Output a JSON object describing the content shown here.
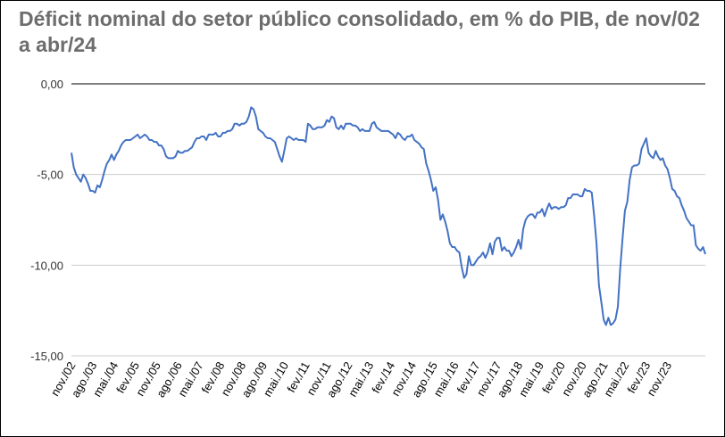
{
  "chart_data": {
    "type": "line",
    "title": "Déficit nominal do setor público consolidado, em % do PIB, de nov/02 a abr/24",
    "xlabel": "",
    "ylabel": "",
    "ylim": [
      -15,
      0
    ],
    "y_ticks": [
      "0,00",
      "-5,00",
      "-10,00",
      "-15,00"
    ],
    "x_tick_labels": [
      "nov./02",
      "ago./03",
      "mai./04",
      "fev./05",
      "nov./05",
      "ago./06",
      "mai./07",
      "fev./08",
      "nov./08",
      "ago./09",
      "mai./10",
      "fev./11",
      "nov./11",
      "ago./12",
      "mai./13",
      "fev./14",
      "nov./14",
      "ago./15",
      "mai./16",
      "fev./17",
      "nov./17",
      "ago./18",
      "mai./19",
      "fev./20",
      "nov./20",
      "ago./21",
      "mai./22",
      "fev./23",
      "nov./23"
    ],
    "grid": true,
    "legend": "none",
    "line_color": "#4472c4",
    "x_start": "2002-11",
    "x_end": "2024-04",
    "series": [
      {
        "values": [
          -3.8,
          -4.6,
          -5.0,
          -5.2,
          -5.4,
          -5.0,
          -5.2,
          -5.5,
          -5.9,
          -5.9,
          -6.0,
          -5.6,
          -5.7,
          -5.3,
          -4.8,
          -4.4,
          -4.2,
          -3.9,
          -4.2,
          -3.9,
          -3.7,
          -3.4,
          -3.2,
          -3.1,
          -3.1,
          -3.1,
          -3.0,
          -2.9,
          -2.8,
          -3.0,
          -2.9,
          -2.8,
          -2.9,
          -3.1,
          -3.1,
          -3.2,
          -3.2,
          -3.4,
          -3.4,
          -3.6,
          -4.0,
          -4.1,
          -4.1,
          -4.1,
          -4.0,
          -3.7,
          -3.8,
          -3.8,
          -3.7,
          -3.7,
          -3.6,
          -3.5,
          -3.2,
          -3.0,
          -3.0,
          -2.9,
          -2.9,
          -3.1,
          -2.8,
          -2.8,
          -2.8,
          -2.7,
          -2.9,
          -2.9,
          -2.7,
          -2.7,
          -2.6,
          -2.6,
          -2.5,
          -2.2,
          -2.2,
          -2.3,
          -2.2,
          -2.2,
          -2.1,
          -1.8,
          -1.3,
          -1.4,
          -1.8,
          -2.5,
          -2.6,
          -2.7,
          -2.9,
          -3.0,
          -3.0,
          -3.1,
          -3.2,
          -3.6,
          -4.0,
          -4.3,
          -3.7,
          -3.0,
          -2.9,
          -3.0,
          -3.1,
          -3.0,
          -3.1,
          -3.1,
          -3.1,
          -3.2,
          -2.2,
          -2.3,
          -2.5,
          -2.5,
          -2.4,
          -2.4,
          -2.4,
          -2.3,
          -2.0,
          -2.1,
          -1.8,
          -1.9,
          -2.4,
          -2.5,
          -2.3,
          -2.5,
          -2.2,
          -2.2,
          -2.2,
          -2.3,
          -2.3,
          -2.4,
          -2.6,
          -2.5,
          -2.6,
          -2.6,
          -2.6,
          -2.2,
          -2.1,
          -2.4,
          -2.5,
          -2.6,
          -2.6,
          -2.6,
          -2.6,
          -2.7,
          -2.8,
          -3.0,
          -2.7,
          -2.8,
          -3.0,
          -3.1,
          -2.9,
          -2.9,
          -2.8,
          -3.1,
          -3.2,
          -3.3,
          -3.5,
          -3.6,
          -4.4,
          -4.8,
          -5.3,
          -5.9,
          -5.7,
          -6.4,
          -7.5,
          -7.2,
          -7.6,
          -8.1,
          -8.8,
          -9.0,
          -9.0,
          -9.2,
          -9.3,
          -10.1,
          -10.7,
          -10.5,
          -9.5,
          -10.0,
          -10.0,
          -9.8,
          -9.6,
          -9.5,
          -9.3,
          -9.6,
          -9.3,
          -8.8,
          -9.4,
          -8.7,
          -8.5,
          -8.5,
          -9.2,
          -9.0,
          -9.2,
          -9.2,
          -9.5,
          -9.3,
          -9.0,
          -8.6,
          -9.1,
          -8.0,
          -7.5,
          -7.3,
          -7.2,
          -7.2,
          -7.4,
          -7.1,
          -7.1,
          -6.9,
          -7.3,
          -6.9,
          -6.6,
          -6.9,
          -6.8,
          -6.8,
          -6.9,
          -6.8,
          -6.8,
          -6.7,
          -6.3,
          -6.3,
          -6.1,
          -6.1,
          -6.1,
          -6.2,
          -6.2,
          -5.8,
          -5.9,
          -5.9,
          -6.0,
          -7.3,
          -8.8,
          -11.1,
          -12.0,
          -13.0,
          -13.3,
          -12.9,
          -13.3,
          -13.2,
          -13.0,
          -12.3,
          -10.2,
          -8.5,
          -7.0,
          -6.5,
          -5.3,
          -4.6,
          -4.5,
          -4.5,
          -4.4,
          -3.6,
          -3.3,
          -3.0,
          -3.8,
          -4.0,
          -4.1,
          -3.7,
          -4.0,
          -4.2,
          -4.1,
          -4.5,
          -4.7,
          -5.2,
          -5.8,
          -5.9,
          -6.2,
          -6.3,
          -6.7,
          -7.0,
          -7.4,
          -7.6,
          -7.8,
          -7.8,
          -8.9,
          -9.1,
          -9.2,
          -9.0,
          -9.4
        ]
      }
    ]
  }
}
